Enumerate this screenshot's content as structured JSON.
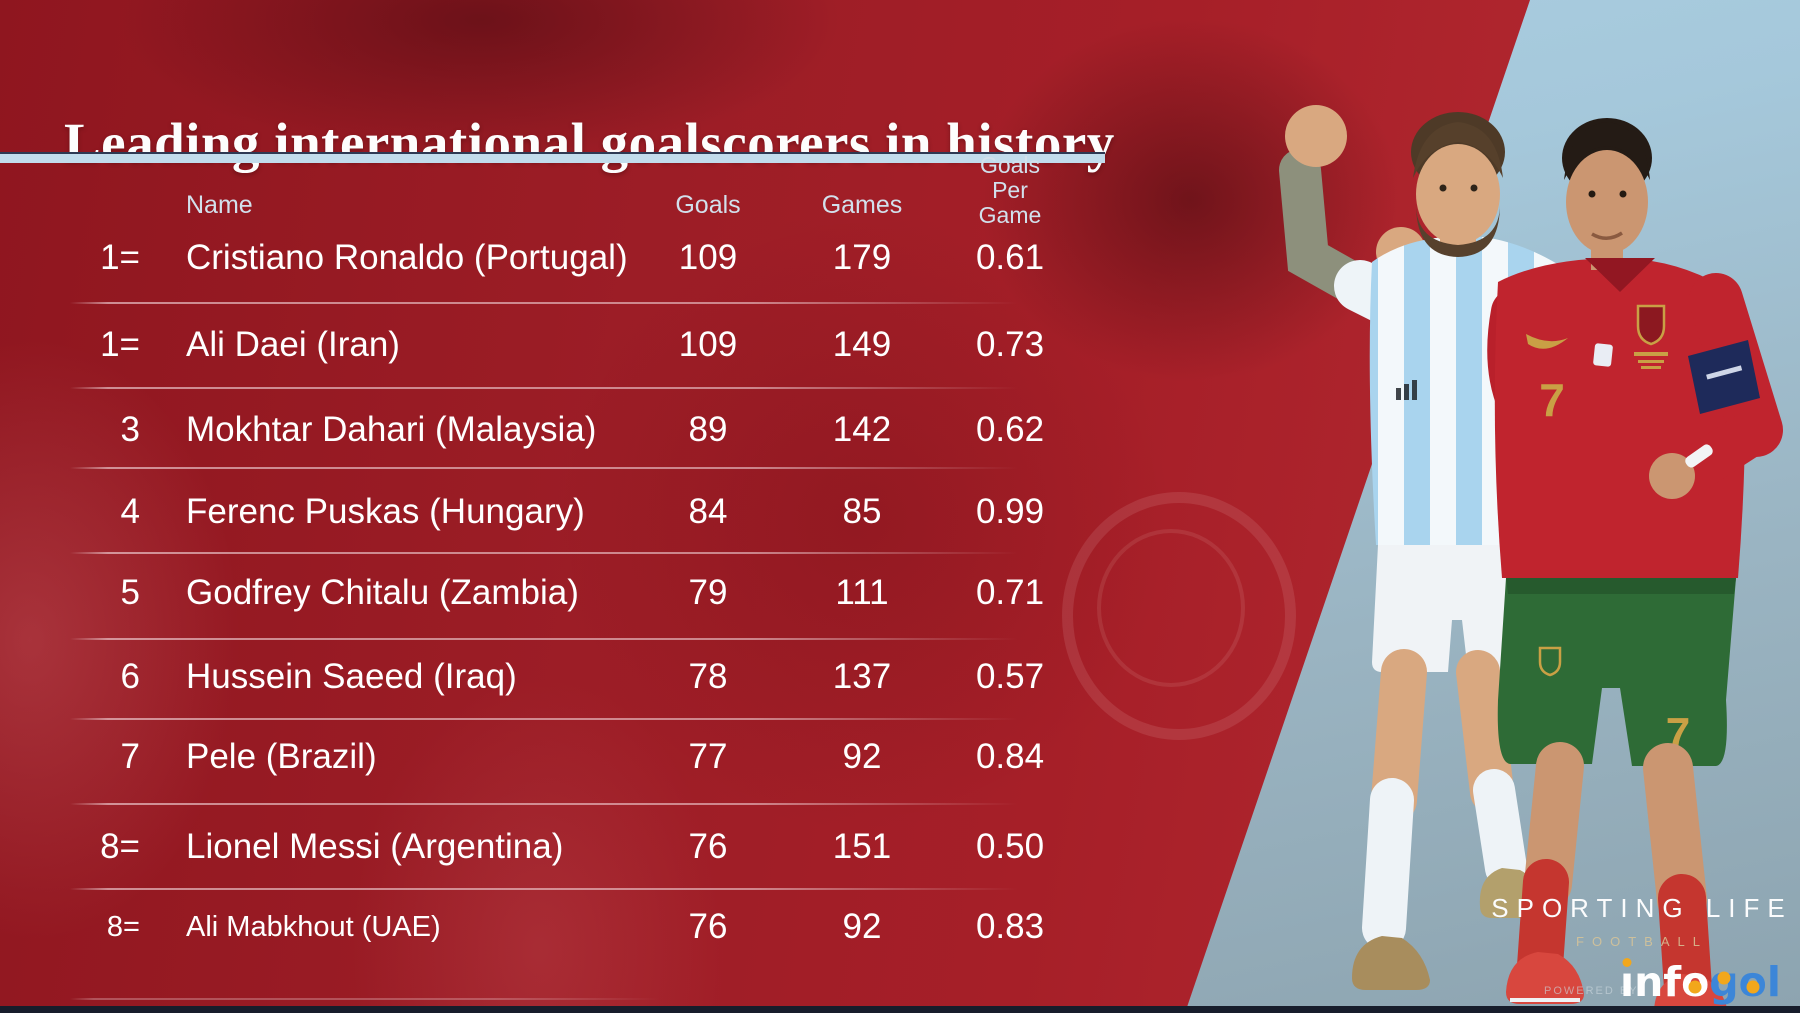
{
  "title": "Leading international goalscorers in history",
  "table": {
    "headers": {
      "name": "Name",
      "goals": "Goals",
      "games": "Games",
      "gpg_lines": [
        "Goals",
        "Per",
        "Game"
      ]
    },
    "rows": [
      {
        "rank": "1=",
        "name": "Cristiano Ronaldo (Portugal)",
        "goals": "109",
        "games": "179",
        "gpg": "0.61"
      },
      {
        "rank": "1=",
        "name": "Ali Daei (Iran)",
        "goals": "109",
        "games": "149",
        "gpg": "0.73"
      },
      {
        "rank": "3",
        "name": "Mokhtar Dahari (Malaysia)",
        "goals": "89",
        "games": "142",
        "gpg": "0.62"
      },
      {
        "rank": "4",
        "name": "Ferenc Puskas (Hungary)",
        "goals": "84",
        "games": "85",
        "gpg": "0.99"
      },
      {
        "rank": "5",
        "name": "Godfrey Chitalu (Zambia)",
        "goals": "79",
        "games": "111",
        "gpg": "0.71"
      },
      {
        "rank": "6",
        "name": "Hussein Saeed (Iraq)",
        "goals": "78",
        "games": "137",
        "gpg": "0.57"
      },
      {
        "rank": "7",
        "name": "Pele (Brazil)",
        "goals": "77",
        "games": "92",
        "gpg": "0.84"
      },
      {
        "rank": "8=",
        "name": "Lionel Messi (Argentina)",
        "goals": "76",
        "games": "151",
        "gpg": "0.50"
      },
      {
        "rank": "8=",
        "name": "Ali Mabkhout (UAE)",
        "goals": "76",
        "games": "92",
        "gpg": "0.83"
      }
    ]
  },
  "chart_data": {
    "type": "table",
    "title": "Leading international goalscorers in history",
    "columns": [
      "Rank",
      "Name",
      "Goals",
      "Games",
      "Goals Per Game"
    ],
    "rows": [
      [
        "1=",
        "Cristiano Ronaldo (Portugal)",
        109,
        179,
        0.61
      ],
      [
        "1=",
        "Ali Daei (Iran)",
        109,
        149,
        0.73
      ],
      [
        "3",
        "Mokhtar Dahari (Malaysia)",
        89,
        142,
        0.62
      ],
      [
        "4",
        "Ferenc Puskas (Hungary)",
        84,
        85,
        0.99
      ],
      [
        "5",
        "Godfrey Chitalu (Zambia)",
        79,
        111,
        0.71
      ],
      [
        "6",
        "Hussein Saeed (Iraq)",
        78,
        137,
        0.57
      ],
      [
        "7",
        "Pele (Brazil)",
        77,
        92,
        0.84
      ],
      [
        "8=",
        "Lionel Messi (Argentina)",
        76,
        151,
        0.5
      ],
      [
        "8=",
        "Ali Mabkhout (UAE)",
        76,
        92,
        0.83
      ]
    ]
  },
  "branding": {
    "primary": "SPORTING LIFE",
    "secondary": "FOOTBALL",
    "powered_by": "POWERED BY",
    "logo_text": "infogol",
    "logo_letters": [
      {
        "ch": "ı",
        "color": "white",
        "mark": "idot"
      },
      {
        "ch": "n",
        "color": "white",
        "mark": ""
      },
      {
        "ch": "f",
        "color": "white",
        "mark": ""
      },
      {
        "ch": "o",
        "color": "white",
        "mark": "ball"
      },
      {
        "ch": "g",
        "color": "blue",
        "mark": "ballg"
      },
      {
        "ch": "o",
        "color": "blue",
        "mark": "ball"
      },
      {
        "ch": "l",
        "color": "blue",
        "mark": ""
      }
    ]
  },
  "colors": {
    "red_background": "#a61f28",
    "blue_background": "#a5c8db",
    "title_underline": "#c2dcec",
    "text": "#ffffff",
    "header_text": "#d2e0ec",
    "kit_gold": "#c9a045",
    "portugal_red": "#c0242e",
    "portugal_green": "#2e6b36",
    "argentina_stripe": "#a9d4ee",
    "infogol_blue": "#3c86d8",
    "infogol_yellow": "#f2a71b"
  }
}
